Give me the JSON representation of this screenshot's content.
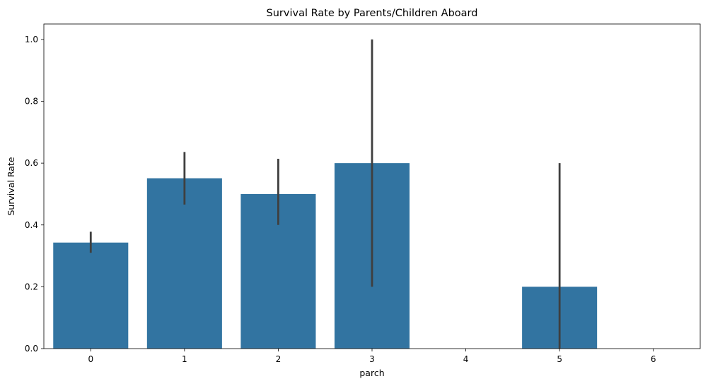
{
  "chart_data": {
    "type": "bar",
    "title": "Survival Rate by Parents/Children Aboard",
    "xlabel": "parch",
    "ylabel": "Survival Rate",
    "categories": [
      "0",
      "1",
      "2",
      "3",
      "4",
      "5",
      "6"
    ],
    "values": [
      0.343,
      0.551,
      0.5,
      0.6,
      0.0,
      0.2,
      0.0
    ],
    "error_bars": [
      [
        0.31,
        0.378
      ],
      [
        0.466,
        0.636
      ],
      [
        0.4,
        0.614
      ],
      [
        0.2,
        1.0
      ],
      null,
      [
        0.0,
        0.6
      ],
      null
    ],
    "ylim": [
      0,
      1.05
    ],
    "yticks": [
      "0.0",
      "0.2",
      "0.4",
      "0.6",
      "0.8",
      "1.0"
    ],
    "ytick_values": [
      0,
      0.2,
      0.4,
      0.6,
      0.8,
      1.0
    ],
    "grid": false,
    "bar_color": "#3274a1",
    "error_color": "#3f3f3f"
  }
}
